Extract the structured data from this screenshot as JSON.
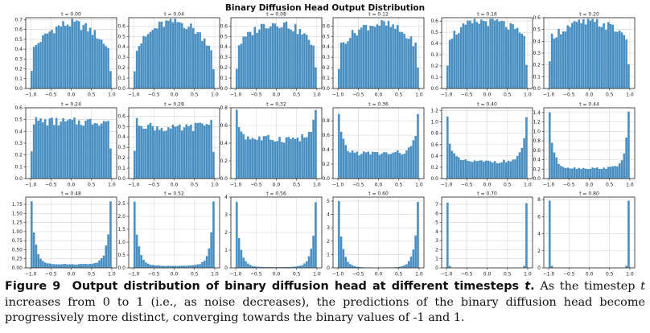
{
  "figure_title": "Binary Diffusion Head Output Distribution",
  "caption": {
    "label": "Figure 9",
    "bold_text": "Output distribution of binary diffusion head at different timesteps",
    "bold_var": "t",
    "text_1": "As the timestep ",
    "var_1": "t",
    "text_2": " increases from 0 to 1 (i.e., as noise decreases), the predictions of the binary diffusion head become progressively more distinct, converging towards the binary values of -1 and 1."
  },
  "colors": {
    "bar": "#4a8fc2",
    "grid": "#d8d8d8",
    "axis": "#222222"
  },
  "chart_data": [
    {
      "type": "bar",
      "title": "t = 0.00",
      "shape": "flat",
      "peak": 0.66,
      "base": 0.36,
      "ylim": [
        0,
        0.72
      ],
      "yticks": [
        0,
        0.1,
        0.2,
        0.3,
        0.4,
        0.5,
        0.6,
        0.7
      ],
      "ytick_labels": [
        "0.0",
        "0.1",
        "0.2",
        "0.3",
        "0.4",
        "0.5",
        "0.6",
        "0.7"
      ],
      "xticks": [
        -1.0,
        -0.5,
        0.0,
        0.5,
        1.0
      ],
      "xtick_labels": [
        "−1.0",
        "−0.5",
        "0.0",
        "0.5",
        "1.0"
      ]
    },
    {
      "type": "bar",
      "title": "t = 0.04",
      "shape": "flat",
      "peak": 0.64,
      "base": 0.34,
      "ylim": [
        0,
        0.68
      ],
      "yticks": [
        0,
        0.1,
        0.2,
        0.3,
        0.4,
        0.5,
        0.6
      ],
      "ytick_labels": [
        "0.0",
        "0.1",
        "0.2",
        "0.3",
        "0.4",
        "0.5",
        "0.6"
      ],
      "xticks": [
        -1.0,
        -0.5,
        0.0,
        0.5,
        1.0
      ],
      "xtick_labels": [
        "−1.0",
        "−0.5",
        "0.0",
        "0.5",
        "1.0"
      ]
    },
    {
      "type": "bar",
      "title": "t = 0.08",
      "shape": "flat",
      "peak": 0.63,
      "base": 0.38,
      "ylim": [
        0,
        0.68
      ],
      "yticks": [
        0,
        0.1,
        0.2,
        0.3,
        0.4,
        0.5,
        0.6
      ],
      "ytick_labels": [
        "0.0",
        "0.1",
        "0.2",
        "0.3",
        "0.4",
        "0.5",
        "0.6"
      ],
      "xticks": [
        -1.0,
        -0.5,
        0.0,
        0.5,
        1.0
      ],
      "xtick_labels": [
        "−1.0",
        "−0.5",
        "0.0",
        "0.5",
        "1.0"
      ]
    },
    {
      "type": "bar",
      "title": "t = 0.12",
      "shape": "flat",
      "peak": 0.62,
      "base": 0.38,
      "ylim": [
        0,
        0.68
      ],
      "yticks": [
        0,
        0.1,
        0.2,
        0.3,
        0.4,
        0.5,
        0.6
      ],
      "ytick_labels": [
        "0.0",
        "0.1",
        "0.2",
        "0.3",
        "0.4",
        "0.5",
        "0.6"
      ],
      "xticks": [
        -1.0,
        -0.5,
        0.0,
        0.5,
        1.0
      ],
      "xtick_labels": [
        "−1.0",
        "−0.5",
        "0.0",
        "0.5",
        "1.0"
      ]
    },
    {
      "type": "bar",
      "title": "t = 0.16",
      "shape": "flat",
      "peak": 0.6,
      "base": 0.43,
      "ylim": [
        0,
        0.63
      ],
      "yticks": [
        0,
        0.1,
        0.2,
        0.3,
        0.4,
        0.5,
        0.6
      ],
      "ytick_labels": [
        "0.0",
        "0.1",
        "0.2",
        "0.3",
        "0.4",
        "0.5",
        "0.6"
      ],
      "xticks": [
        -1.0,
        -0.5,
        0.0,
        0.5,
        1.0
      ],
      "xtick_labels": [
        "−1.0",
        "−0.5",
        "0.0",
        "0.5",
        "1.0"
      ]
    },
    {
      "type": "bar",
      "title": "t = 0.20",
      "shape": "flat",
      "peak": 0.56,
      "base": 0.42,
      "ylim": [
        0,
        0.6
      ],
      "yticks": [
        0,
        0.1,
        0.2,
        0.3,
        0.4,
        0.5,
        0.6
      ],
      "ytick_labels": [
        "0.0",
        "0.1",
        "0.2",
        "0.3",
        "0.4",
        "0.5",
        "0.6"
      ],
      "xticks": [
        -1.0,
        -0.5,
        0.0,
        0.5,
        1.0
      ],
      "xtick_labels": [
        "−1.0",
        "−0.5",
        "0.0",
        "0.5",
        "1.0"
      ]
    },
    {
      "type": "bar",
      "title": "t = 0.24",
      "shape": "flat",
      "peak": 0.48,
      "base": 0.5,
      "ylim": [
        0,
        0.6
      ],
      "yticks": [
        0,
        0.1,
        0.2,
        0.3,
        0.4,
        0.5,
        0.6
      ],
      "ytick_labels": [
        "0.0",
        "0.1",
        "0.2",
        "0.3",
        "0.4",
        "0.5",
        "0.6"
      ],
      "xticks": [
        -1.0,
        -0.5,
        0.0,
        0.5,
        1.0
      ],
      "xtick_labels": [
        "−1.0",
        "−0.5",
        "0.0",
        "0.5",
        "1.0"
      ]
    },
    {
      "type": "bar",
      "title": "t = 0.28",
      "shape": "flat",
      "peak": 0.48,
      "base": 0.6,
      "ylim": [
        0,
        0.68
      ],
      "yticks": [
        0,
        0.1,
        0.2,
        0.3,
        0.4,
        0.5,
        0.6
      ],
      "ytick_labels": [
        "0.0",
        "0.1",
        "0.2",
        "0.3",
        "0.4",
        "0.5",
        "0.6"
      ],
      "xticks": [
        -1.0,
        -0.5,
        0.0,
        0.5,
        1.0
      ],
      "xtick_labels": [
        "−1.0",
        "−0.5",
        "0.0",
        "0.5",
        "1.0"
      ]
    },
    {
      "type": "bar",
      "title": "t = 0.32",
      "shape": "u",
      "mid": 0.45,
      "edge": 0.78,
      "ylim": [
        0,
        0.8
      ],
      "yticks": [
        0,
        0.2,
        0.4,
        0.6,
        0.8
      ],
      "ytick_labels": [
        "0.0",
        "0.2",
        "0.4",
        "0.6",
        "0.8"
      ],
      "xticks": [
        -1.0,
        -0.5,
        0.0,
        0.5,
        1.0
      ],
      "xtick_labels": [
        "−1.0",
        "−0.5",
        "0.0",
        "0.5",
        "1.0"
      ]
    },
    {
      "type": "bar",
      "title": "t = 0.36",
      "shape": "u",
      "mid": 0.35,
      "edge": 0.9,
      "ylim": [
        0,
        0.98
      ],
      "yticks": [
        0,
        0.2,
        0.4,
        0.6,
        0.8
      ],
      "ytick_labels": [
        "0.0",
        "0.2",
        "0.4",
        "0.6",
        "0.8"
      ],
      "xticks": [
        -1.0,
        -0.5,
        0.0,
        0.5,
        1.0
      ],
      "xtick_labels": [
        "−1.0",
        "−0.5",
        "0.0",
        "0.5",
        "1.0"
      ]
    },
    {
      "type": "bar",
      "title": "t = 0.40",
      "shape": "u",
      "mid": 0.3,
      "edge": 1.1,
      "ylim": [
        0,
        1.25
      ],
      "yticks": [
        0,
        0.2,
        0.4,
        0.6,
        0.8,
        1.0,
        1.2
      ],
      "ytick_labels": [
        "0.0",
        "0.2",
        "0.4",
        "0.6",
        "0.8",
        "1.0",
        "1.2"
      ],
      "xticks": [
        -1.0,
        -0.5,
        0.0,
        0.5,
        1.0
      ],
      "xtick_labels": [
        "−1.0",
        "−0.5",
        "0.0",
        "0.5",
        "1.0"
      ]
    },
    {
      "type": "bar",
      "title": "t = 0.44",
      "shape": "u",
      "mid": 0.22,
      "edge": 1.42,
      "ylim": [
        0,
        1.5
      ],
      "yticks": [
        0,
        0.2,
        0.4,
        0.6,
        0.8,
        1.0,
        1.2,
        1.4
      ],
      "ytick_labels": [
        "0.0",
        "0.2",
        "0.4",
        "0.6",
        "0.8",
        "1.0",
        "1.2",
        "1.4"
      ],
      "xticks": [
        -1.0,
        -0.5,
        0.0,
        0.5,
        1.0
      ],
      "xtick_labels": [
        "−1.0",
        "−0.5",
        "0.0",
        "0.5",
        "1.0"
      ]
    },
    {
      "type": "bar",
      "title": "t = 0.48",
      "shape": "u",
      "mid": 0.1,
      "edge": 1.86,
      "ylim": [
        0,
        1.95
      ],
      "yticks": [
        0,
        0.25,
        0.5,
        0.75,
        1.0,
        1.25,
        1.5,
        1.75
      ],
      "ytick_labels": [
        "0.00",
        "0.25",
        "0.50",
        "0.75",
        "1.00",
        "1.25",
        "1.50",
        "1.75"
      ],
      "xticks": [
        -1.0,
        -0.5,
        0.0,
        0.5,
        1.0
      ],
      "xtick_labels": [
        "−1.0",
        "−0.5",
        "0.0",
        "0.5",
        "1.0"
      ]
    },
    {
      "type": "bar",
      "title": "t = 0.52",
      "shape": "u",
      "mid": 0.08,
      "edge": 2.6,
      "ylim": [
        0,
        2.75
      ],
      "yticks": [
        0,
        0.5,
        1.0,
        1.5,
        2.0,
        2.5
      ],
      "ytick_labels": [
        "0.0",
        "0.5",
        "1.0",
        "1.5",
        "2.0",
        "2.5"
      ],
      "xticks": [
        -1.0,
        -0.5,
        0.0,
        0.5,
        1.0
      ],
      "xtick_labels": [
        "−1.0",
        "−0.5",
        "0.0",
        "0.5",
        "1.0"
      ]
    },
    {
      "type": "bar",
      "title": "t = 0.56",
      "shape": "u",
      "mid": 0.04,
      "edge": 3.75,
      "ylim": [
        0,
        4.0
      ],
      "yticks": [
        0,
        1,
        2,
        3,
        4
      ],
      "ytick_labels": [
        "0",
        "1",
        "2",
        "3",
        "4"
      ],
      "xticks": [
        -1.0,
        -0.5,
        0.0,
        0.5,
        1.0
      ],
      "xtick_labels": [
        "−1.0",
        "−0.5",
        "0.0",
        "0.5",
        "1.0"
      ]
    },
    {
      "type": "bar",
      "title": "t = 0.60",
      "shape": "u",
      "mid": 0.02,
      "edge": 5.0,
      "ylim": [
        0,
        5.3
      ],
      "yticks": [
        0,
        1,
        2,
        3,
        4,
        5
      ],
      "ytick_labels": [
        "0",
        "1",
        "2",
        "3",
        "4",
        "5"
      ],
      "xticks": [
        -1.0,
        -0.5,
        0.0,
        0.5,
        1.0
      ],
      "xtick_labels": [
        "−1.0",
        "−0.5",
        "0.0",
        "0.5",
        "1.0"
      ]
    },
    {
      "type": "bar",
      "title": "t = 0.70",
      "shape": "spike",
      "edge": 7.2,
      "ylim": [
        0,
        7.8
      ],
      "yticks": [
        0,
        1,
        2,
        3,
        4,
        5,
        6,
        7
      ],
      "ytick_labels": [
        "0",
        "1",
        "2",
        "3",
        "4",
        "5",
        "6",
        "7"
      ],
      "xticks": [
        -1.0,
        -0.5,
        0.0,
        0.5,
        1.0
      ],
      "xtick_labels": [
        "−1.0",
        "−0.5",
        "0.0",
        "0.5",
        "1.0"
      ]
    },
    {
      "type": "bar",
      "title": "t = 0.80",
      "shape": "spike",
      "edge": 7.9,
      "ylim": [
        0,
        8.3
      ],
      "yticks": [
        0,
        2,
        4,
        6,
        8
      ],
      "ytick_labels": [
        "0",
        "2",
        "4",
        "6",
        "8"
      ],
      "xticks": [
        -1.0,
        -0.5,
        0.0,
        0.5,
        1.0
      ],
      "xtick_labels": [
        "−1.0",
        "−0.5",
        "0.0",
        "0.5",
        "1.0"
      ]
    }
  ]
}
